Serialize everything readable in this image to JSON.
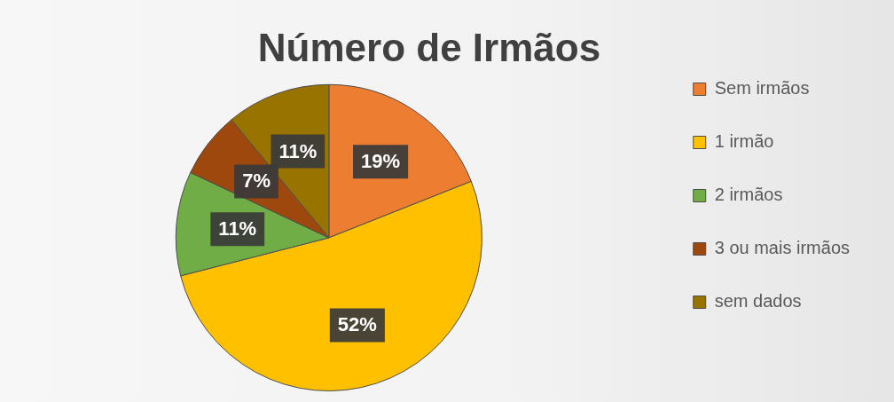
{
  "chart_data": {
    "type": "pie",
    "title": "Número de Irmãos",
    "categories": [
      "Sem irmãos",
      "1 irmão",
      "2 irmãos",
      "3 ou mais irmãos",
      "sem dados"
    ],
    "values": [
      19,
      52,
      11,
      7,
      11
    ],
    "colors": [
      "#ed7d31",
      "#ffc000",
      "#70ad47",
      "#9e480e",
      "#997300"
    ],
    "value_labels": [
      "19%",
      "52%",
      "11%",
      "7%",
      "11%"
    ],
    "legend": "right"
  }
}
